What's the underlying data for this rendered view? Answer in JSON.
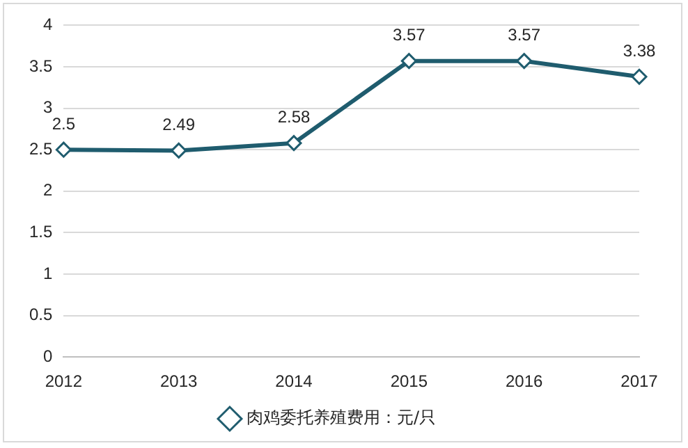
{
  "chart_data": {
    "type": "line",
    "categories": [
      "2012",
      "2013",
      "2014",
      "2015",
      "2016",
      "2017"
    ],
    "series": [
      {
        "name": "肉鸡委托养殖费用：元/只",
        "color": "#1f5c6e",
        "values": [
          2.5,
          2.49,
          2.58,
          3.57,
          3.57,
          3.38
        ]
      }
    ],
    "ylim": [
      0,
      4
    ],
    "yticks": [
      0,
      0.5,
      1,
      1.5,
      2,
      2.5,
      3,
      3.5,
      4
    ],
    "grid": "y",
    "legend": "bottom",
    "marker": "diamond",
    "data_labels": true
  }
}
